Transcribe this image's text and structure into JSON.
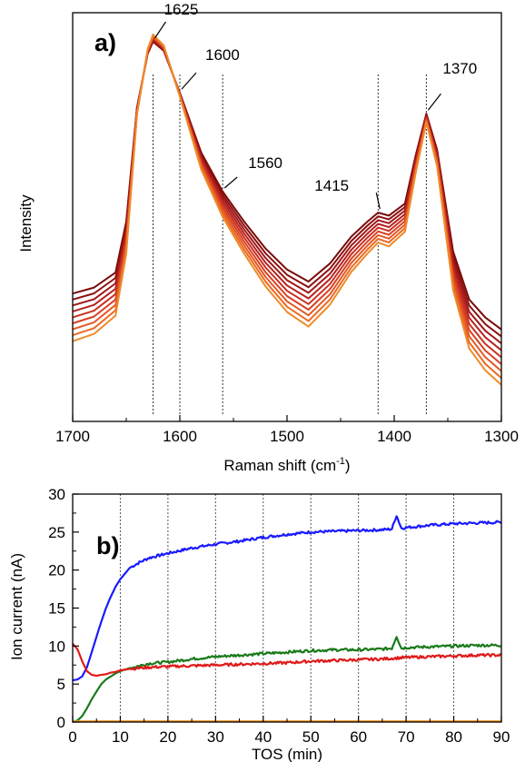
{
  "chart_data": [
    {
      "panel": "a)",
      "type": "line",
      "xlabel_main": "Raman shift (cm",
      "xlabel_sup": "-1",
      "xlabel_close": ")",
      "ylabel": "Intensity",
      "xlim": [
        1700,
        1300
      ],
      "xticks": [
        1700,
        1600,
        1500,
        1400,
        1300
      ],
      "x_reversed": true,
      "y_ticks_shown": false,
      "grid": false,
      "reference_lines": [
        1625,
        1600,
        1560,
        1415,
        1370
      ],
      "annotations": [
        {
          "text": "1625",
          "x": 1625
        },
        {
          "text": "1600",
          "x": 1600
        },
        {
          "text": "1560",
          "x": 1560
        },
        {
          "text": "1415",
          "x": 1415
        },
        {
          "text": "1370",
          "x": 1370
        }
      ],
      "series_colors": [
        "#7a0a0a",
        "#8b1010",
        "#a01818",
        "#b52020",
        "#c83020",
        "#d84024",
        "#e25824",
        "#ea6a22",
        "#ee8a2a"
      ],
      "series_shape": {
        "x": [
          1700,
          1680,
          1660,
          1650,
          1640,
          1630,
          1625,
          1615,
          1600,
          1580,
          1560,
          1540,
          1520,
          1500,
          1480,
          1460,
          1440,
          1425,
          1415,
          1405,
          1390,
          1380,
          1370,
          1360,
          1345,
          1330,
          1315,
          1300
        ],
        "y": [
          0.16,
          0.18,
          0.23,
          0.4,
          0.78,
          0.96,
          1.0,
          0.97,
          0.83,
          0.63,
          0.5,
          0.4,
          0.31,
          0.24,
          0.2,
          0.26,
          0.35,
          0.4,
          0.43,
          0.42,
          0.46,
          0.62,
          0.76,
          0.64,
          0.3,
          0.14,
          0.08,
          0.04
        ]
      }
    },
    {
      "panel": "b)",
      "type": "line",
      "xlabel": "TOS (min)",
      "ylabel": "Ion current (nA)",
      "xlim": [
        0,
        90
      ],
      "ylim": [
        0,
        30
      ],
      "xticks": [
        0,
        10,
        20,
        30,
        40,
        50,
        60,
        70,
        80,
        90
      ],
      "yticks": [
        0,
        5,
        10,
        15,
        20,
        25,
        30
      ],
      "vertical_gridlines": [
        10,
        20,
        30,
        40,
        50,
        60,
        70,
        80
      ],
      "series": [
        {
          "color": "#1a1aff",
          "x": [
            0,
            1,
            2,
            3,
            4,
            5,
            6,
            7,
            8,
            9,
            10,
            12,
            14,
            16,
            20,
            25,
            30,
            35,
            40,
            45,
            50,
            55,
            60,
            65,
            67,
            68,
            69,
            70,
            75,
            80,
            85,
            90
          ],
          "y": [
            5.5,
            5.6,
            6.0,
            7.2,
            9.2,
            11.2,
            13.2,
            15.0,
            16.5,
            17.8,
            18.8,
            20.3,
            21.0,
            21.6,
            22.2,
            22.9,
            23.4,
            23.8,
            24.3,
            24.7,
            25.0,
            25.1,
            25.2,
            25.3,
            25.4,
            27.2,
            25.5,
            25.6,
            25.9,
            26.1,
            26.2,
            26.3
          ]
        },
        {
          "color": "#1a7a1a",
          "x": [
            0,
            1,
            2,
            3,
            4,
            5,
            6,
            7,
            8,
            9,
            10,
            12,
            14,
            16,
            20,
            25,
            30,
            35,
            40,
            45,
            50,
            55,
            60,
            65,
            67,
            68,
            69,
            70,
            75,
            80,
            85,
            90
          ],
          "y": [
            0.0,
            0.2,
            0.8,
            1.8,
            3.0,
            4.0,
            5.0,
            5.6,
            6.0,
            6.4,
            6.7,
            7.1,
            7.4,
            7.7,
            7.9,
            8.3,
            8.6,
            8.8,
            9.0,
            9.2,
            9.4,
            9.5,
            9.5,
            9.6,
            9.7,
            11.3,
            9.7,
            9.8,
            9.9,
            10.0,
            10.1,
            10.1
          ]
        },
        {
          "color": "#e01a1a",
          "x": [
            0,
            1,
            2,
            3,
            4,
            5,
            6,
            7,
            8,
            9,
            10,
            12,
            14,
            16,
            20,
            25,
            30,
            35,
            40,
            45,
            50,
            55,
            60,
            65,
            70,
            75,
            80,
            85,
            90
          ],
          "y": [
            10.3,
            9.6,
            8.0,
            6.7,
            6.2,
            6.1,
            6.2,
            6.3,
            6.5,
            6.6,
            6.8,
            7.0,
            7.1,
            7.2,
            7.3,
            7.4,
            7.5,
            7.6,
            7.7,
            7.8,
            8.0,
            8.1,
            8.2,
            8.3,
            8.5,
            8.6,
            8.7,
            8.8,
            8.8
          ]
        },
        {
          "color": "#f0961e",
          "x": [
            0,
            90
          ],
          "y": [
            0.1,
            0.1
          ]
        }
      ]
    }
  ]
}
